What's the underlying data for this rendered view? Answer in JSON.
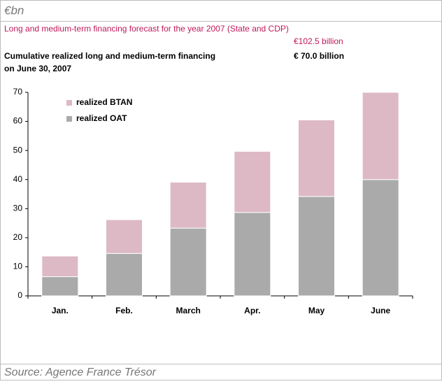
{
  "unit": "€bn",
  "chart_data": {
    "type": "stacked_bar",
    "title": "Long and medium-term financing forecast for the  year 2007 (State and CDP)",
    "forecast": "€102.5 billion",
    "subtitle": [
      "Cumulative realized long and medium-term financing",
      "on June 30, 2007"
    ],
    "cumulative": "€ 70.0 billion",
    "categories": [
      "Jan.",
      "Feb.",
      "March",
      "Apr.",
      "May",
      "June"
    ],
    "series": [
      {
        "name": "realized OAT",
        "color": "#aaaaaa",
        "values": [
          6.6,
          14.6,
          23.3,
          28.7,
          34.2,
          40.0
        ]
      },
      {
        "name": "realized BTAN",
        "color": "#dcb9c5",
        "values": [
          7.1,
          11.6,
          15.8,
          21.0,
          26.3,
          30.0
        ]
      }
    ],
    "ylim": [
      0,
      70
    ],
    "yticks": [
      0,
      10,
      20,
      30,
      40,
      50,
      60,
      70
    ]
  },
  "source": "Source: Agence France Trésor"
}
